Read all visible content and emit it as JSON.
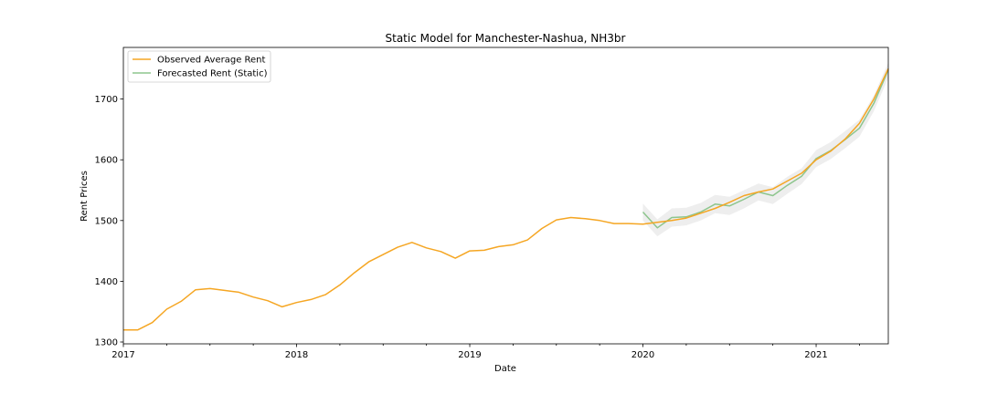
{
  "chart_data": {
    "type": "line",
    "title": "Static Model for Manchester-Nashua, NH3br",
    "xlabel": "Date",
    "ylabel": "Rent Prices",
    "x_ticks": [
      "2017",
      "2018",
      "2019",
      "2020",
      "2021"
    ],
    "y_ticks": [
      1300,
      1400,
      1500,
      1600,
      1700
    ],
    "xlim": [
      "2017-01",
      "2021-06"
    ],
    "ylim": [
      1297,
      1785
    ],
    "grid": false,
    "legend_position": "top-left",
    "colors": {
      "observed": "#f5a623",
      "forecast": "#8dc58d",
      "band": "#e3e3e3"
    },
    "series": [
      {
        "name": "Observed Average Rent",
        "color": "#f5a623",
        "x": [
          "2017-01",
          "2017-02",
          "2017-03",
          "2017-04",
          "2017-05",
          "2017-06",
          "2017-07",
          "2017-08",
          "2017-09",
          "2017-10",
          "2017-11",
          "2017-12",
          "2018-01",
          "2018-02",
          "2018-03",
          "2018-04",
          "2018-05",
          "2018-06",
          "2018-07",
          "2018-08",
          "2018-09",
          "2018-10",
          "2018-11",
          "2018-12",
          "2019-01",
          "2019-02",
          "2019-03",
          "2019-04",
          "2019-05",
          "2019-06",
          "2019-07",
          "2019-08",
          "2019-09",
          "2019-10",
          "2019-11",
          "2019-12",
          "2020-01",
          "2020-02",
          "2020-03",
          "2020-04",
          "2020-05",
          "2020-06",
          "2020-07",
          "2020-08",
          "2020-09",
          "2020-10",
          "2020-11",
          "2020-12",
          "2021-01",
          "2021-02",
          "2021-03",
          "2021-04",
          "2021-05",
          "2021-06"
        ],
        "values": [
          1320,
          1320,
          1332,
          1354,
          1367,
          1386,
          1388,
          1385,
          1382,
          1374,
          1368,
          1358,
          1365,
          1370,
          1378,
          1394,
          1414,
          1432,
          1444,
          1456,
          1464,
          1455,
          1449,
          1438,
          1450,
          1451,
          1457,
          1460,
          1468,
          1487,
          1501,
          1505,
          1503,
          1500,
          1495,
          1495,
          1494,
          1497,
          1500,
          1504,
          1512,
          1520,
          1530,
          1541,
          1547,
          1552,
          1565,
          1578,
          1600,
          1614,
          1634,
          1660,
          1700,
          1750
        ]
      },
      {
        "name": "Forecasted Rent (Static)",
        "color": "#8dc58d",
        "x": [
          "2020-01",
          "2020-02",
          "2020-03",
          "2020-04",
          "2020-05",
          "2020-06",
          "2020-07",
          "2020-08",
          "2020-09",
          "2020-10",
          "2020-11",
          "2020-12",
          "2021-01",
          "2021-02",
          "2021-03",
          "2021-04",
          "2021-05",
          "2021-06"
        ],
        "values": [
          1514,
          1488,
          1505,
          1506,
          1514,
          1527,
          1524,
          1535,
          1547,
          1541,
          1558,
          1573,
          1602,
          1615,
          1633,
          1652,
          1693,
          1748
        ],
        "band_lower": [
          1500,
          1474,
          1490,
          1492,
          1500,
          1512,
          1509,
          1520,
          1533,
          1527,
          1544,
          1560,
          1588,
          1601,
          1619,
          1638,
          1680,
          1735
        ],
        "band_upper": [
          1528,
          1502,
          1520,
          1521,
          1529,
          1542,
          1539,
          1550,
          1561,
          1555,
          1572,
          1586,
          1616,
          1629,
          1647,
          1666,
          1706,
          1760
        ]
      }
    ]
  }
}
